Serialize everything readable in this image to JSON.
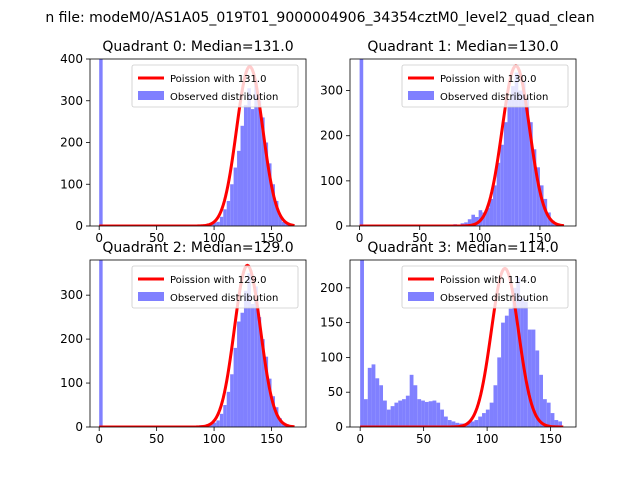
{
  "figure": {
    "suptitle": "n file: modeM0/AS1A05_019T01_9000004906_34354cztM0_level2_quad_clean"
  },
  "colors": {
    "observed": "#8080ff",
    "poisson": "#ff0000"
  },
  "chart_data": [
    {
      "type": "bar",
      "title": "Quadrant 0: Median=131.0",
      "xlim": [
        -8,
        180
      ],
      "ylim": [
        0,
        400
      ],
      "xticks": [
        0,
        50,
        100,
        150
      ],
      "yticks": [
        0,
        100,
        200,
        300,
        400
      ],
      "legend": [
        "Poission with 131.0",
        "Observed distribution"
      ],
      "poisson_mean": 131,
      "poisson_peak": 382,
      "poisson_range": [
        0,
        170
      ],
      "bin_width": 3,
      "bins": [
        {
          "x": 0,
          "v": 400
        },
        {
          "x": 72,
          "v": 2
        },
        {
          "x": 78,
          "v": 2
        },
        {
          "x": 84,
          "v": 2
        },
        {
          "x": 90,
          "v": 3
        },
        {
          "x": 96,
          "v": 5
        },
        {
          "x": 99,
          "v": 8
        },
        {
          "x": 102,
          "v": 10
        },
        {
          "x": 105,
          "v": 22
        },
        {
          "x": 108,
          "v": 40
        },
        {
          "x": 111,
          "v": 60
        },
        {
          "x": 114,
          "v": 100
        },
        {
          "x": 117,
          "v": 140
        },
        {
          "x": 120,
          "v": 180
        },
        {
          "x": 123,
          "v": 240
        },
        {
          "x": 126,
          "v": 290
        },
        {
          "x": 129,
          "v": 330
        },
        {
          "x": 132,
          "v": 280
        },
        {
          "x": 135,
          "v": 350
        },
        {
          "x": 138,
          "v": 300
        },
        {
          "x": 141,
          "v": 260
        },
        {
          "x": 144,
          "v": 200
        },
        {
          "x": 147,
          "v": 150
        },
        {
          "x": 150,
          "v": 100
        },
        {
          "x": 153,
          "v": 60
        },
        {
          "x": 156,
          "v": 25
        },
        {
          "x": 159,
          "v": 10
        },
        {
          "x": 162,
          "v": 5
        },
        {
          "x": 165,
          "v": 3
        }
      ]
    },
    {
      "type": "bar",
      "title": "Quadrant 1: Median=130.0",
      "xlim": [
        -8,
        180
      ],
      "ylim": [
        0,
        370
      ],
      "xticks": [
        0,
        50,
        100,
        150
      ],
      "yticks": [
        0,
        100,
        200,
        300
      ],
      "legend": [
        "Poission with 130.0",
        "Observed distribution"
      ],
      "poisson_mean": 130,
      "poisson_peak": 355,
      "poisson_range": [
        0,
        170
      ],
      "bin_width": 3,
      "bins": [
        {
          "x": 0,
          "v": 370
        },
        {
          "x": 60,
          "v": 2
        },
        {
          "x": 66,
          "v": 3
        },
        {
          "x": 72,
          "v": 3
        },
        {
          "x": 78,
          "v": 4
        },
        {
          "x": 84,
          "v": 6
        },
        {
          "x": 87,
          "v": 8
        },
        {
          "x": 90,
          "v": 15
        },
        {
          "x": 93,
          "v": 25
        },
        {
          "x": 96,
          "v": 20
        },
        {
          "x": 99,
          "v": 35
        },
        {
          "x": 102,
          "v": 30
        },
        {
          "x": 105,
          "v": 40
        },
        {
          "x": 108,
          "v": 60
        },
        {
          "x": 111,
          "v": 90
        },
        {
          "x": 114,
          "v": 140
        },
        {
          "x": 117,
          "v": 180
        },
        {
          "x": 120,
          "v": 230
        },
        {
          "x": 123,
          "v": 280
        },
        {
          "x": 126,
          "v": 310
        },
        {
          "x": 129,
          "v": 340
        },
        {
          "x": 132,
          "v": 300
        },
        {
          "x": 135,
          "v": 320
        },
        {
          "x": 138,
          "v": 280
        },
        {
          "x": 141,
          "v": 230
        },
        {
          "x": 144,
          "v": 170
        },
        {
          "x": 147,
          "v": 130
        },
        {
          "x": 150,
          "v": 90
        },
        {
          "x": 153,
          "v": 60
        },
        {
          "x": 156,
          "v": 30
        },
        {
          "x": 159,
          "v": 12
        },
        {
          "x": 162,
          "v": 5
        }
      ]
    },
    {
      "type": "bar",
      "title": "Quadrant 2: Median=129.0",
      "xlim": [
        -8,
        180
      ],
      "ylim": [
        0,
        380
      ],
      "xticks": [
        0,
        50,
        100,
        150
      ],
      "yticks": [
        0,
        100,
        200,
        300
      ],
      "legend": [
        "Poission with 129.0",
        "Observed distribution"
      ],
      "poisson_mean": 129,
      "poisson_peak": 368,
      "poisson_range": [
        0,
        170
      ],
      "bin_width": 3,
      "bins": [
        {
          "x": 0,
          "v": 380
        },
        {
          "x": 75,
          "v": 2
        },
        {
          "x": 81,
          "v": 3
        },
        {
          "x": 87,
          "v": 4
        },
        {
          "x": 93,
          "v": 6
        },
        {
          "x": 96,
          "v": 8
        },
        {
          "x": 99,
          "v": 10
        },
        {
          "x": 102,
          "v": 15
        },
        {
          "x": 105,
          "v": 30
        },
        {
          "x": 108,
          "v": 50
        },
        {
          "x": 111,
          "v": 80
        },
        {
          "x": 114,
          "v": 120
        },
        {
          "x": 117,
          "v": 180
        },
        {
          "x": 120,
          "v": 240
        },
        {
          "x": 123,
          "v": 260
        },
        {
          "x": 126,
          "v": 310
        },
        {
          "x": 129,
          "v": 350
        },
        {
          "x": 132,
          "v": 280
        },
        {
          "x": 135,
          "v": 320
        },
        {
          "x": 138,
          "v": 250
        },
        {
          "x": 141,
          "v": 200
        },
        {
          "x": 144,
          "v": 160
        },
        {
          "x": 147,
          "v": 110
        },
        {
          "x": 150,
          "v": 70
        },
        {
          "x": 153,
          "v": 45
        },
        {
          "x": 156,
          "v": 20
        },
        {
          "x": 159,
          "v": 10
        },
        {
          "x": 162,
          "v": 4
        }
      ]
    },
    {
      "type": "bar",
      "title": "Quadrant 3: Median=114.0",
      "xlim": [
        -8,
        170
      ],
      "ylim": [
        0,
        240
      ],
      "xticks": [
        0,
        50,
        100,
        150
      ],
      "yticks": [
        0,
        50,
        100,
        150,
        200
      ],
      "legend": [
        "Poission with 114.0",
        "Observed distribution"
      ],
      "poisson_mean": 114,
      "poisson_peak": 228,
      "poisson_range": [
        0,
        160
      ],
      "bin_width": 3,
      "bins": [
        {
          "x": 0,
          "v": 240
        },
        {
          "x": 3,
          "v": 40
        },
        {
          "x": 6,
          "v": 85
        },
        {
          "x": 9,
          "v": 90
        },
        {
          "x": 12,
          "v": 70
        },
        {
          "x": 15,
          "v": 60
        },
        {
          "x": 18,
          "v": 38
        },
        {
          "x": 21,
          "v": 25
        },
        {
          "x": 24,
          "v": 30
        },
        {
          "x": 27,
          "v": 35
        },
        {
          "x": 30,
          "v": 38
        },
        {
          "x": 33,
          "v": 40
        },
        {
          "x": 36,
          "v": 45
        },
        {
          "x": 39,
          "v": 75
        },
        {
          "x": 42,
          "v": 60
        },
        {
          "x": 45,
          "v": 40
        },
        {
          "x": 48,
          "v": 38
        },
        {
          "x": 51,
          "v": 36
        },
        {
          "x": 54,
          "v": 37
        },
        {
          "x": 57,
          "v": 38
        },
        {
          "x": 60,
          "v": 35
        },
        {
          "x": 63,
          "v": 25
        },
        {
          "x": 66,
          "v": 15
        },
        {
          "x": 69,
          "v": 10
        },
        {
          "x": 72,
          "v": 8
        },
        {
          "x": 75,
          "v": 6
        },
        {
          "x": 78,
          "v": 5
        },
        {
          "x": 81,
          "v": 5
        },
        {
          "x": 84,
          "v": 6
        },
        {
          "x": 87,
          "v": 8
        },
        {
          "x": 90,
          "v": 10
        },
        {
          "x": 93,
          "v": 15
        },
        {
          "x": 96,
          "v": 20
        },
        {
          "x": 99,
          "v": 25
        },
        {
          "x": 102,
          "v": 35
        },
        {
          "x": 105,
          "v": 60
        },
        {
          "x": 108,
          "v": 100
        },
        {
          "x": 111,
          "v": 150
        },
        {
          "x": 114,
          "v": 160
        },
        {
          "x": 117,
          "v": 170
        },
        {
          "x": 120,
          "v": 200
        },
        {
          "x": 123,
          "v": 215
        },
        {
          "x": 126,
          "v": 185
        },
        {
          "x": 129,
          "v": 180
        },
        {
          "x": 132,
          "v": 140
        },
        {
          "x": 135,
          "v": 140
        },
        {
          "x": 138,
          "v": 110
        },
        {
          "x": 141,
          "v": 75
        },
        {
          "x": 144,
          "v": 40
        },
        {
          "x": 147,
          "v": 35
        },
        {
          "x": 150,
          "v": 20
        },
        {
          "x": 153,
          "v": 10
        },
        {
          "x": 156,
          "v": 8
        }
      ]
    }
  ]
}
